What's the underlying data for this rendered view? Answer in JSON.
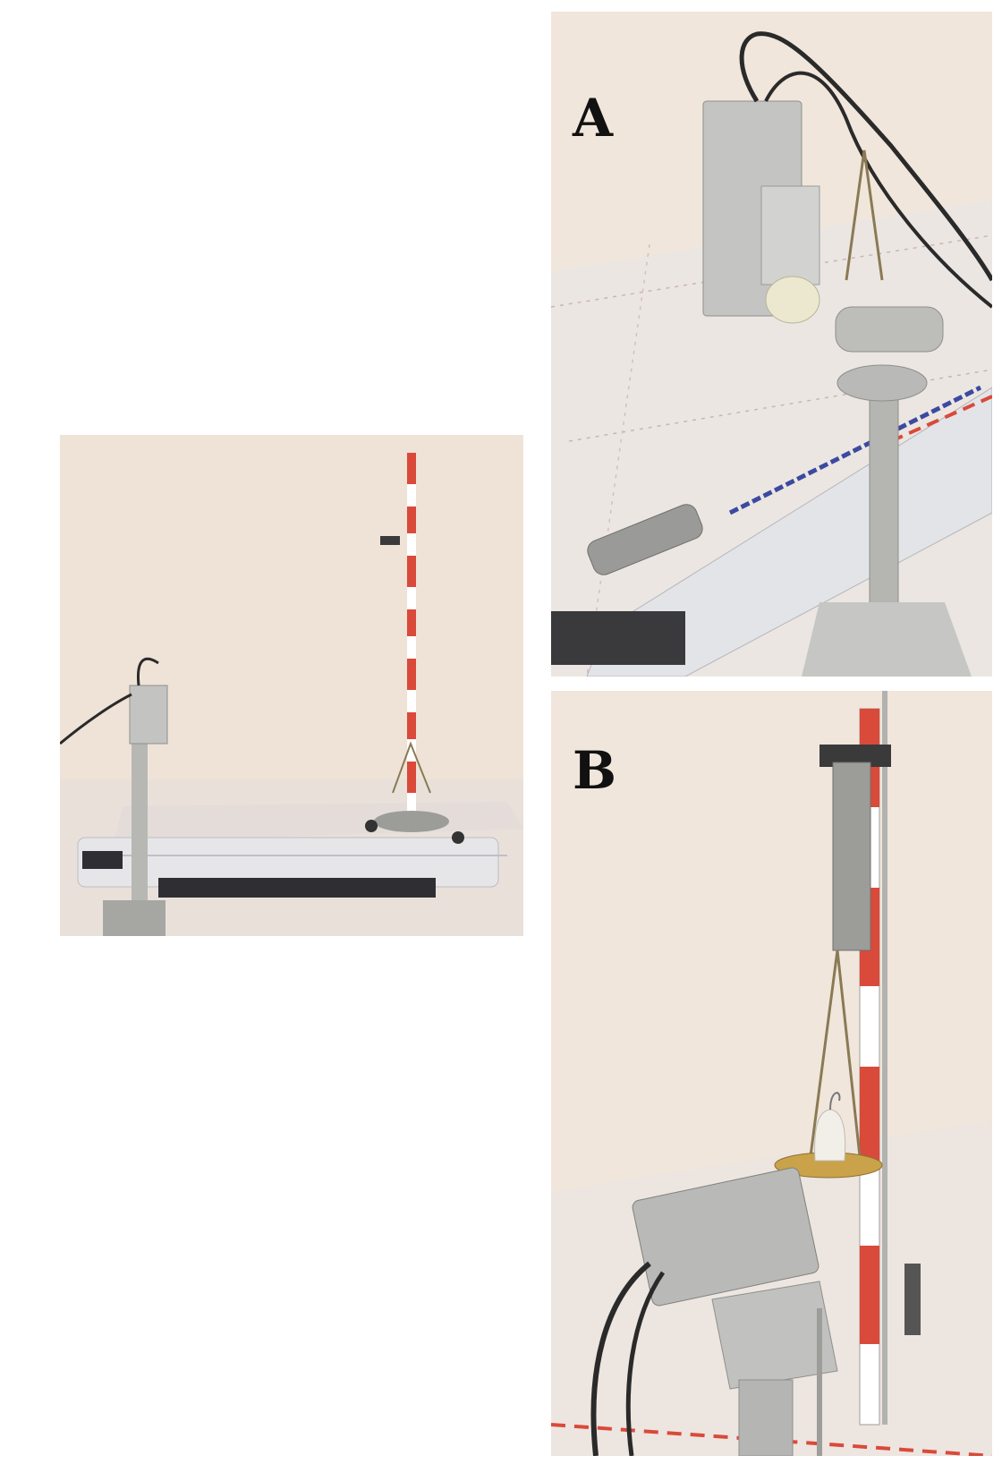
{
  "panels": [
    {
      "id": "overview",
      "label": ""
    },
    {
      "id": "detail-a",
      "label": "A"
    },
    {
      "id": "detail-b",
      "label": "B"
    }
  ],
  "colors": {
    "wall": "#efe3d8",
    "floor": "#ece4de",
    "rail": "#e8e8ea",
    "rod_red": "#d94a3a",
    "metal": "#a9aaa8",
    "camera": "#c8c9c6",
    "cable": "#2a2a2a",
    "knob": "#ece8d0",
    "brass": "#c9a24a"
  }
}
